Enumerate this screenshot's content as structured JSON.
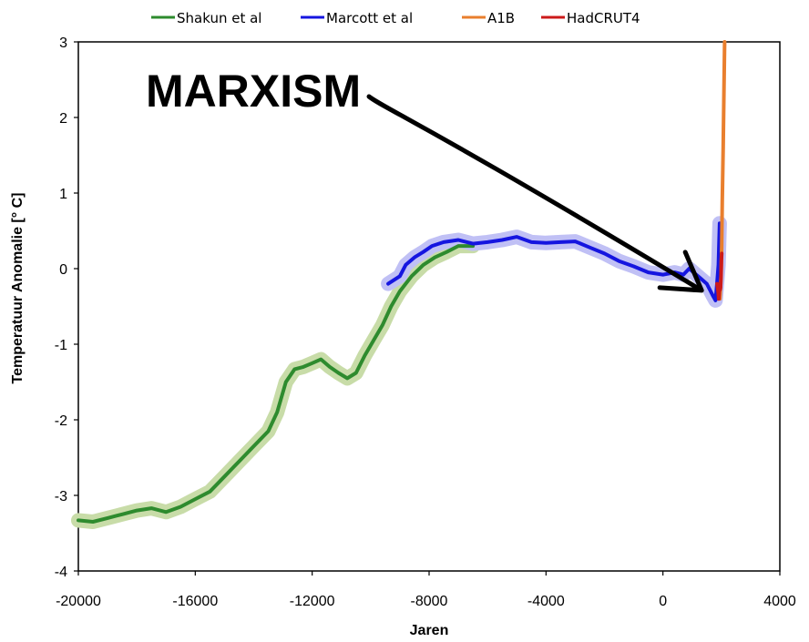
{
  "chart_data": {
    "type": "line",
    "xlabel": "Jaren",
    "ylabel": "Temperatuur Anomalie [° C]",
    "xlim": [
      -20000,
      4000
    ],
    "ylim": [
      -4,
      3
    ],
    "x_ticks": [
      "-20000",
      "-16000",
      "-12000",
      "-8000",
      "-4000",
      "0",
      "4000"
    ],
    "y_ticks": [
      "3",
      "2",
      "1",
      "0",
      "-1",
      "-2",
      "-3",
      "-4"
    ],
    "grid": false,
    "legend_position": "top",
    "annotation": {
      "text": "MARXISM",
      "arrow_target": [
        1200,
        -0.3
      ]
    },
    "series": [
      {
        "name": "Shakun et al",
        "color": "#2e8b2e",
        "band_color": "#c8dca8",
        "points": [
          [
            -20000,
            -3.33
          ],
          [
            -19500,
            -3.35
          ],
          [
            -19000,
            -3.3
          ],
          [
            -18500,
            -3.25
          ],
          [
            -18000,
            -3.2
          ],
          [
            -17500,
            -3.17
          ],
          [
            -17000,
            -3.22
          ],
          [
            -16500,
            -3.15
          ],
          [
            -16000,
            -3.05
          ],
          [
            -15500,
            -2.95
          ],
          [
            -15000,
            -2.75
          ],
          [
            -14500,
            -2.55
          ],
          [
            -14000,
            -2.35
          ],
          [
            -13500,
            -2.15
          ],
          [
            -13200,
            -1.9
          ],
          [
            -12900,
            -1.5
          ],
          [
            -12600,
            -1.33
          ],
          [
            -12300,
            -1.3
          ],
          [
            -12000,
            -1.25
          ],
          [
            -11700,
            -1.2
          ],
          [
            -11400,
            -1.3
          ],
          [
            -11100,
            -1.38
          ],
          [
            -10800,
            -1.45
          ],
          [
            -10500,
            -1.38
          ],
          [
            -10200,
            -1.15
          ],
          [
            -9900,
            -0.95
          ],
          [
            -9600,
            -0.75
          ],
          [
            -9300,
            -0.5
          ],
          [
            -9000,
            -0.3
          ],
          [
            -8600,
            -0.1
          ],
          [
            -8200,
            0.05
          ],
          [
            -7800,
            0.15
          ],
          [
            -7400,
            0.22
          ],
          [
            -7000,
            0.3
          ],
          [
            -6500,
            0.3
          ]
        ]
      },
      {
        "name": "Marcott et al",
        "color": "#1515e0",
        "band_color": "#c0c0f5",
        "points": [
          [
            -9400,
            -0.2
          ],
          [
            -9000,
            -0.1
          ],
          [
            -8800,
            0.05
          ],
          [
            -8500,
            0.15
          ],
          [
            -8200,
            0.22
          ],
          [
            -7900,
            0.3
          ],
          [
            -7500,
            0.35
          ],
          [
            -7000,
            0.38
          ],
          [
            -6500,
            0.33
          ],
          [
            -6000,
            0.35
          ],
          [
            -5500,
            0.38
          ],
          [
            -5000,
            0.42
          ],
          [
            -4500,
            0.35
          ],
          [
            -4000,
            0.34
          ],
          [
            -3500,
            0.35
          ],
          [
            -3000,
            0.36
          ],
          [
            -2500,
            0.28
          ],
          [
            -2000,
            0.2
          ],
          [
            -1500,
            0.1
          ],
          [
            -1000,
            0.03
          ],
          [
            -500,
            -0.05
          ],
          [
            0,
            -0.08
          ],
          [
            400,
            -0.05
          ],
          [
            700,
            -0.08
          ],
          [
            900,
            0.0
          ],
          [
            1200,
            -0.1
          ],
          [
            1500,
            -0.2
          ],
          [
            1700,
            -0.35
          ],
          [
            1800,
            -0.42
          ],
          [
            1850,
            -0.2
          ],
          [
            1900,
            0.05
          ],
          [
            1920,
            0.35
          ],
          [
            1940,
            0.6
          ]
        ]
      },
      {
        "name": "A1B",
        "color": "#e97f2e",
        "points": [
          [
            1950,
            -0.4
          ],
          [
            1990,
            -0.1
          ],
          [
            2010,
            0.3
          ],
          [
            2030,
            0.9
          ],
          [
            2060,
            1.6
          ],
          [
            2090,
            2.4
          ],
          [
            2110,
            3.0
          ]
        ]
      },
      {
        "name": "HadCRUT4",
        "color": "#cc1a1a",
        "points": [
          [
            1850,
            -0.2
          ],
          [
            1870,
            -0.25
          ],
          [
            1890,
            -0.3
          ],
          [
            1910,
            -0.4
          ],
          [
            1925,
            -0.32
          ],
          [
            1940,
            -0.2
          ],
          [
            1955,
            -0.28
          ],
          [
            1970,
            -0.25
          ],
          [
            1985,
            -0.1
          ],
          [
            2000,
            0.1
          ],
          [
            2012,
            0.2
          ]
        ]
      }
    ]
  }
}
